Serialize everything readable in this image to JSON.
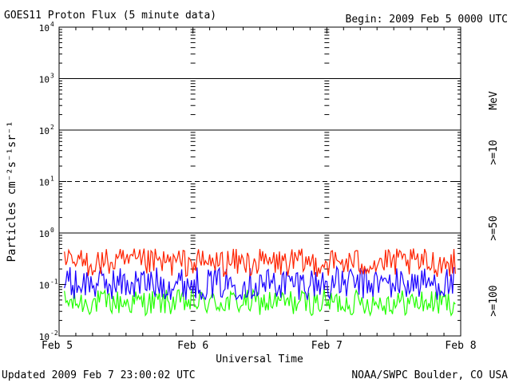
{
  "header": {
    "title": "GOES11 Proton Flux (5 minute data)",
    "begin": "Begin: 2009 Feb 5 0000 UTC"
  },
  "footer": {
    "updated": "Updated 2009 Feb  7 23:00:02 UTC",
    "source": "NOAA/SWPC Boulder, CO USA"
  },
  "axes": {
    "xlabel": "Universal Time",
    "ylabel": "Particles cm⁻²s⁻¹sr⁻¹",
    "right_unit": "MeV"
  },
  "chart_data": {
    "type": "line",
    "title": "GOES11 Proton Flux (5 minute data)",
    "xlabel": "Universal Time",
    "ylabel": "Particles cm⁻²s⁻¹sr⁻¹",
    "yscale": "log",
    "ylim": [
      0.01,
      10000
    ],
    "y_ticks": [
      {
        "base": "10",
        "exp": "-2",
        "value": 0.01
      },
      {
        "base": "10",
        "exp": "-1",
        "value": 0.1
      },
      {
        "base": "10",
        "exp": "0",
        "value": 1
      },
      {
        "base": "10",
        "exp": "1",
        "value": 10
      },
      {
        "base": "10",
        "exp": "2",
        "value": 100
      },
      {
        "base": "10",
        "exp": "3",
        "value": 1000
      },
      {
        "base": "10",
        "exp": "4",
        "value": 10000
      }
    ],
    "x_ticks": [
      "Feb 5",
      "Feb 6",
      "Feb 7",
      "Feb 8"
    ],
    "xlim": [
      "2009-02-05T00:00Z",
      "2009-02-08T00:00Z"
    ],
    "reference_lines": [
      {
        "value": 1000,
        "style": "solid"
      },
      {
        "value": 100,
        "style": "solid"
      },
      {
        "value": 10,
        "style": "dashed"
      },
      {
        "value": 1,
        "style": "solid"
      }
    ],
    "series": [
      {
        "name": ">=10",
        "color": "#ff2200",
        "typical_range": [
          0.14,
          0.5
        ]
      },
      {
        "name": ">=50",
        "color": "#1a00ff",
        "typical_range": [
          0.05,
          0.22
        ]
      },
      {
        "name": ">=100",
        "color": "#22ff00",
        "typical_range": [
          0.025,
          0.08
        ]
      }
    ]
  }
}
